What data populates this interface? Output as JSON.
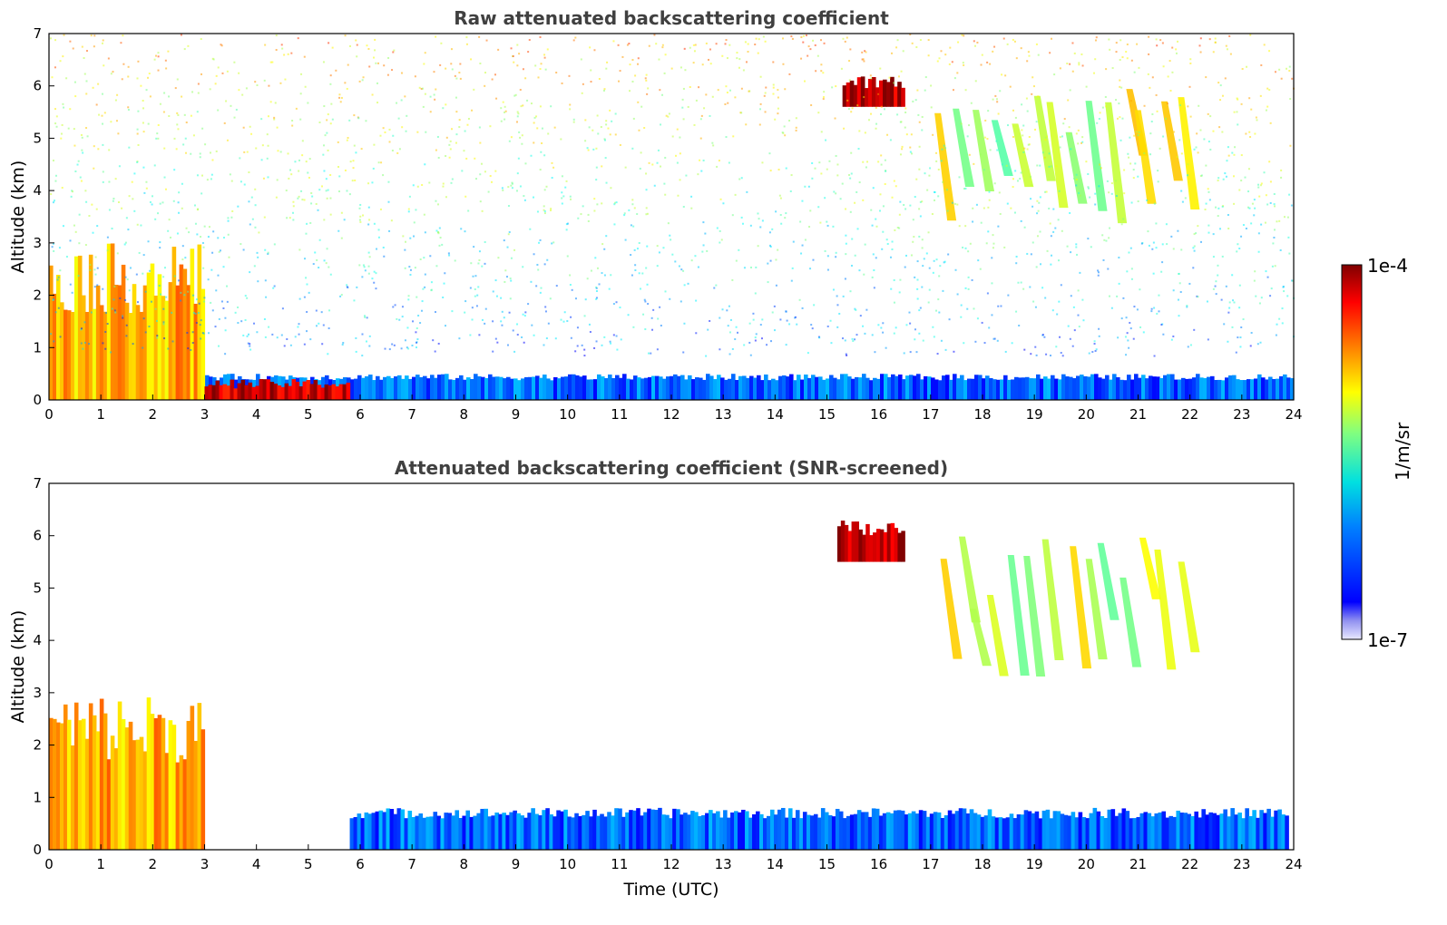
{
  "chart_data": [
    {
      "type": "heatmap",
      "title": "Raw attenuated backscattering coefficient",
      "xlabel": "",
      "ylabel": "Altitude (km)",
      "xlim": [
        0,
        24
      ],
      "ylim": [
        0,
        7
      ],
      "xticks": [
        "0",
        "1",
        "2",
        "3",
        "4",
        "5",
        "6",
        "7",
        "8",
        "9",
        "10",
        "11",
        "12",
        "13",
        "14",
        "15",
        "16",
        "17",
        "18",
        "19",
        "20",
        "21",
        "22",
        "23",
        "24"
      ],
      "yticks": [
        "0",
        "1",
        "2",
        "3",
        "4",
        "5",
        "6",
        "7"
      ],
      "features": [
        {
          "name": "boundary layer",
          "x_range": [
            0,
            24
          ],
          "y_top": 0.5,
          "level": 0.22
        },
        {
          "name": "low cloud",
          "x_range": [
            0,
            3.0
          ],
          "y_top": 3.0,
          "level": 0.7
        },
        {
          "name": "cloud base layer",
          "x_range": [
            3.0,
            5.8
          ],
          "y_top": 0.4,
          "level": 0.92
        },
        {
          "name": "cirrus",
          "x_range": [
            15.3,
            16.5
          ],
          "y_range": [
            5.6,
            6.2
          ],
          "level": 0.95
        },
        {
          "name": "fall streaks",
          "x_range": [
            17.0,
            22.0
          ],
          "y_range": [
            3.3,
            6.0
          ],
          "level": 0.58
        }
      ]
    },
    {
      "type": "heatmap",
      "title": "Attenuated backscattering coefficient (SNR-screened)",
      "xlabel": "Time (UTC)",
      "ylabel": "Altitude (km)",
      "xlim": [
        0,
        24
      ],
      "ylim": [
        0,
        7
      ],
      "xticks": [
        "0",
        "1",
        "2",
        "3",
        "4",
        "5",
        "6",
        "7",
        "8",
        "9",
        "10",
        "11",
        "12",
        "13",
        "14",
        "15",
        "16",
        "17",
        "18",
        "19",
        "20",
        "21",
        "22",
        "23",
        "24"
      ],
      "yticks": [
        "0",
        "1",
        "2",
        "3",
        "4",
        "5",
        "6",
        "7"
      ],
      "features": [
        {
          "name": "boundary layer",
          "x_range": [
            5.8,
            23.9
          ],
          "y_top": 0.8,
          "level": 0.22
        },
        {
          "name": "low cloud",
          "x_range": [
            0,
            3.0
          ],
          "y_top": 3.0,
          "level": 0.7
        },
        {
          "name": "cirrus",
          "x_range": [
            15.2,
            16.5
          ],
          "y_range": [
            5.5,
            6.3
          ],
          "level": 0.95
        },
        {
          "name": "fall streaks",
          "x_range": [
            17.0,
            22.0
          ],
          "y_range": [
            3.3,
            6.0
          ],
          "level": 0.58
        }
      ]
    }
  ],
  "colorbar": {
    "label": "1/m/sr",
    "max_label": "1e-4",
    "min_label": "1e-7",
    "colormap": "jet",
    "scale": "log"
  }
}
